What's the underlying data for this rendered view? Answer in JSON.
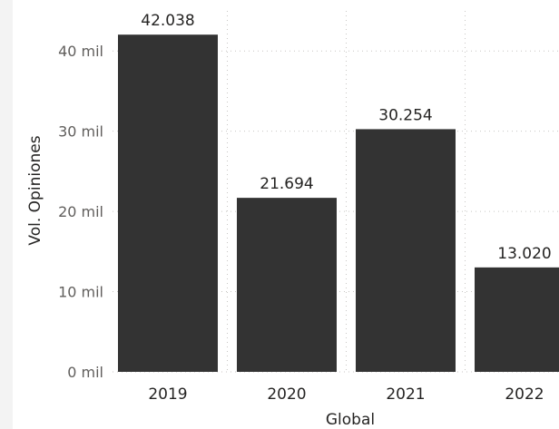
{
  "chart_data": {
    "type": "bar",
    "categories": [
      "2019",
      "2020",
      "2021",
      "2022"
    ],
    "values": [
      42038,
      21694,
      30254,
      13020
    ],
    "data_labels": [
      "42.038",
      "21.694",
      "30.254",
      "13.020"
    ],
    "xlabel": "Global",
    "ylabel": "Vol. Opiniones",
    "ylim": [
      0,
      45000
    ],
    "yticks": [
      0,
      10000,
      20000,
      30000,
      40000
    ],
    "ytick_labels": [
      "0 mil",
      "10 mil",
      "20 mil",
      "30 mil",
      "40 mil"
    ],
    "grid": true,
    "bar_color": "#333333",
    "grid_color": "#c8c6c4"
  }
}
